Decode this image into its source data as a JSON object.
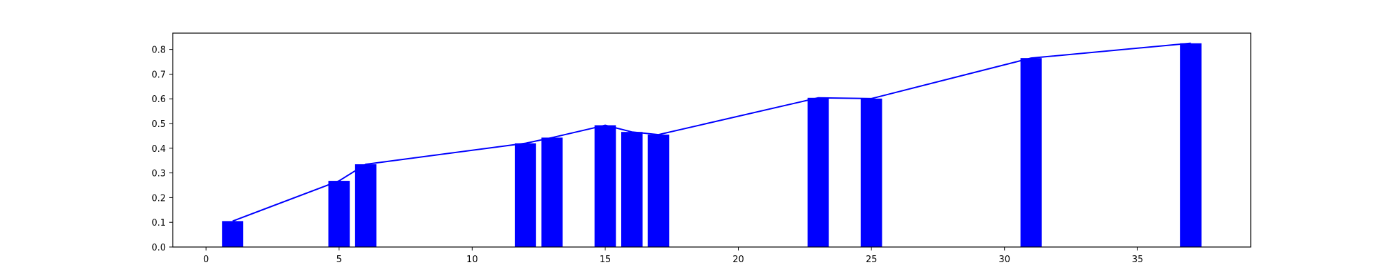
{
  "chart_data": {
    "type": "bar",
    "title": "",
    "xlabel": "",
    "ylabel": "",
    "xlim": [
      -1.25,
      39.25
    ],
    "ylim": [
      0,
      0.866
    ],
    "x_ticks": [
      0,
      5,
      10,
      15,
      20,
      25,
      30,
      35
    ],
    "x_tick_labels": [
      "0",
      "5",
      "10",
      "15",
      "20",
      "25",
      "30",
      "35"
    ],
    "y_ticks": [
      0.0,
      0.1,
      0.2,
      0.3,
      0.4,
      0.5,
      0.6,
      0.7,
      0.8
    ],
    "y_tick_labels": [
      "0.0",
      "0.1",
      "0.2",
      "0.3",
      "0.4",
      "0.5",
      "0.6",
      "0.7",
      "0.8"
    ],
    "grid": false,
    "bar_width": 0.8,
    "x": [
      1,
      5,
      6,
      12,
      13,
      15,
      16,
      17,
      23,
      25,
      31,
      37
    ],
    "series": [
      {
        "values": [
          0.105,
          0.268,
          0.335,
          0.42,
          0.443,
          0.493,
          0.466,
          0.455,
          0.604,
          0.601,
          0.765,
          0.825
        ],
        "color": "#0000ff",
        "kind": "bar"
      },
      {
        "values": [
          0.105,
          0.268,
          0.335,
          0.42,
          0.443,
          0.493,
          0.466,
          0.455,
          0.604,
          0.601,
          0.765,
          0.825
        ],
        "color": "#0000ff",
        "kind": "line"
      }
    ]
  }
}
